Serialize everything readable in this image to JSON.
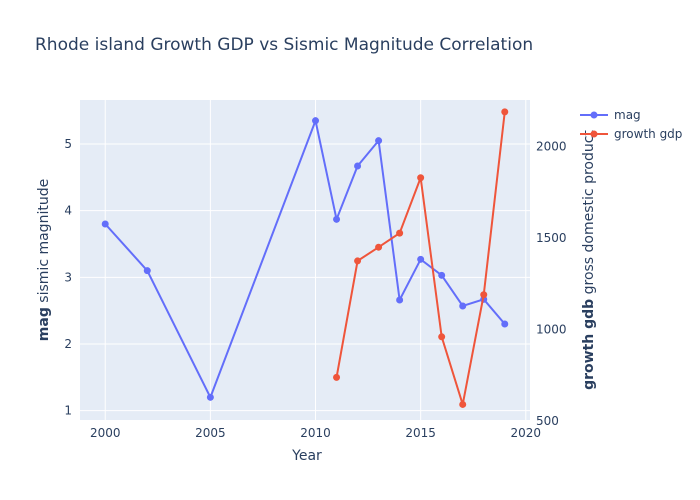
{
  "chart_data": {
    "type": "line",
    "title": "Rhode island Growth GDP vs Sismic Magnitude Correlation",
    "xlabel": "Year",
    "ylabel_bold": "mag",
    "ylabel_rest": " sismic magnitude",
    "y2label_bold": "growth gdb",
    "y2label_rest": " gross domestic product",
    "xlim": [
      1998.8,
      2020.2
    ],
    "ylim": [
      0.86,
      5.66
    ],
    "y2lim": [
      505,
      2255
    ],
    "xticks": [
      2000,
      2005,
      2010,
      2015,
      2020
    ],
    "yticks": [
      1,
      2,
      3,
      4,
      5
    ],
    "y2ticks": [
      500,
      1000,
      1500,
      2000
    ],
    "grid": true,
    "legend_position": "top-right",
    "series": [
      {
        "name": "mag",
        "axis": "y",
        "color": "#636efa",
        "x": [
          2000,
          2002,
          2005,
          2010,
          2011,
          2012,
          2013,
          2014,
          2015,
          2016,
          2017,
          2018,
          2019
        ],
        "y": [
          3.8,
          3.1,
          1.2,
          5.35,
          3.87,
          4.67,
          5.05,
          2.66,
          3.27,
          3.03,
          2.57,
          2.67,
          2.3
        ]
      },
      {
        "name": "growth gdp",
        "axis": "y2",
        "color": "#ef553b",
        "x": [
          2011,
          2012,
          2013,
          2014,
          2015,
          2016,
          2017,
          2018,
          2019
        ],
        "y": [
          738,
          1375,
          1450,
          1527,
          1830,
          960,
          590,
          1190,
          2190
        ]
      }
    ]
  }
}
